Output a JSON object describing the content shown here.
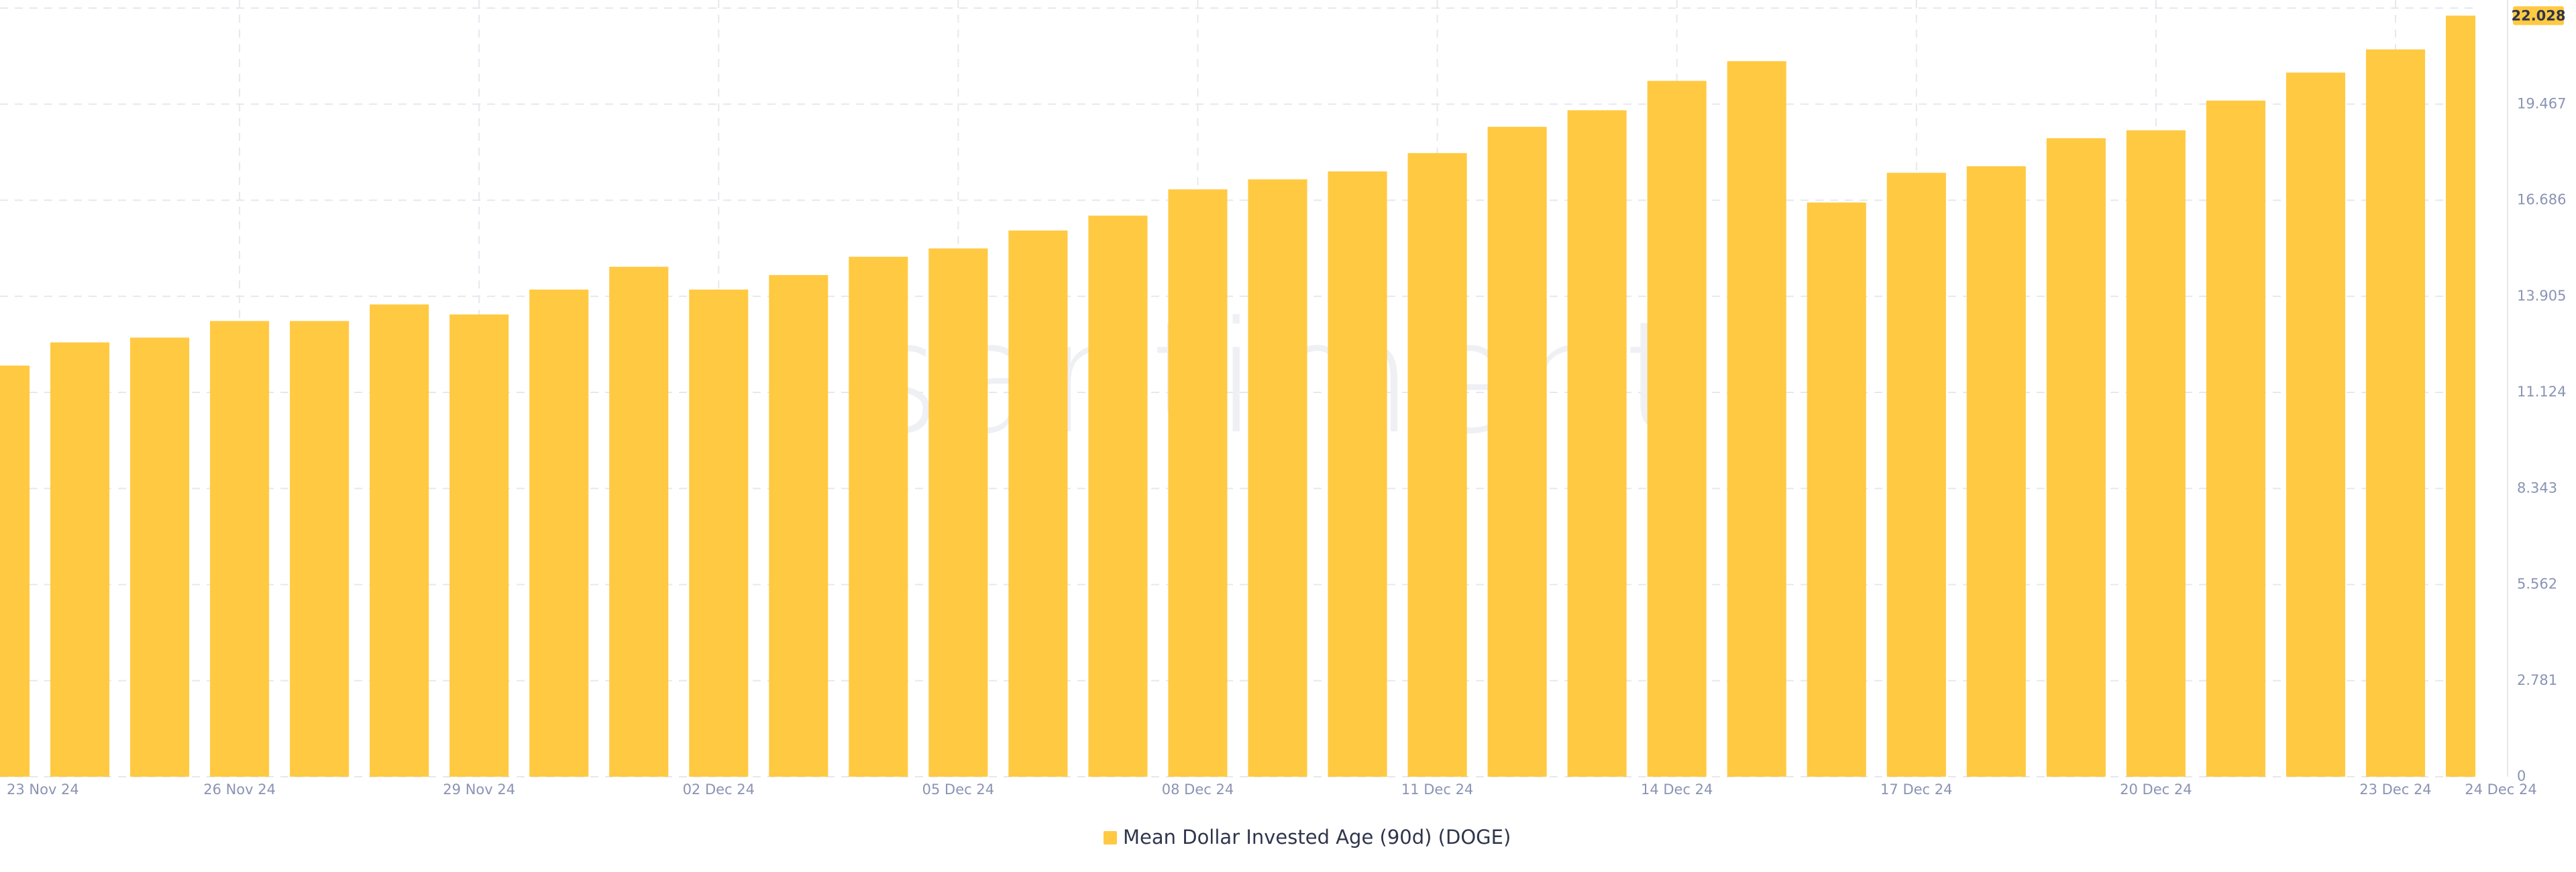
{
  "chart_data": {
    "type": "bar",
    "watermark": "santiment",
    "categories": [
      "23 Nov 24",
      null,
      null,
      "26 Nov 24",
      null,
      null,
      "29 Nov 24",
      null,
      null,
      "02 Dec 24",
      null,
      null,
      "05 Dec 24",
      null,
      null,
      "08 Dec 24",
      null,
      null,
      "11 Dec 24",
      null,
      null,
      "14 Dec 24",
      null,
      null,
      "17 Dec 24",
      null,
      null,
      "20 Dec 24",
      null,
      null,
      "23 Dec 24",
      "24 Dec 24"
    ],
    "series": [
      {
        "name": "Mean Dollar Invested Age (90d) (DOGE)",
        "color": "#ffc942",
        "values": [
          11.9,
          12.57,
          12.71,
          13.19,
          13.19,
          13.67,
          13.38,
          14.1,
          14.76,
          14.1,
          14.52,
          15.05,
          15.29,
          15.81,
          16.24,
          17.0,
          17.29,
          17.52,
          18.05,
          18.81,
          19.29,
          20.14,
          20.71,
          16.62,
          17.48,
          17.67,
          18.48,
          18.71,
          19.57,
          20.38,
          21.05,
          22.028
        ]
      }
    ],
    "ylim": [
      0,
      22.248
    ],
    "yticks": [
      0,
      2.781,
      5.562,
      8.343,
      11.124,
      13.905,
      16.686,
      19.467
    ],
    "grid": true
  }
}
